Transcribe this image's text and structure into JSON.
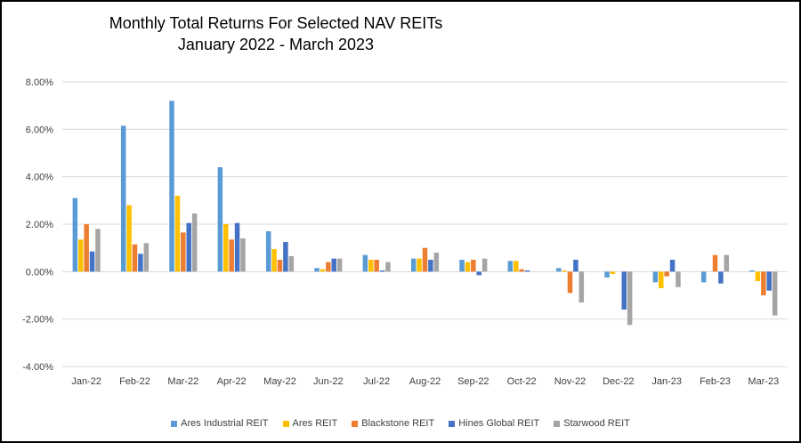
{
  "title_line1": "Monthly Total Returns For Selected NAV REITs",
  "title_line2": "January 2022 - March 2023",
  "chart_data": {
    "type": "bar",
    "title": "Monthly Total Returns For Selected NAV REITs",
    "subtitle": "January 2022 - March 2023",
    "xlabel": "",
    "ylabel": "",
    "ylim": [
      -4,
      8
    ],
    "yticks": [
      -4,
      -2,
      0,
      2,
      4,
      6,
      8
    ],
    "ytick_labels": [
      "-4.00%",
      "-2.00%",
      "0.00%",
      "2.00%",
      "4.00%",
      "6.00%",
      "8.00%"
    ],
    "grid": true,
    "legend_position": "bottom",
    "categories": [
      "Jan-22",
      "Feb-22",
      "Mar-22",
      "Apr-22",
      "May-22",
      "Jun-22",
      "Jul-22",
      "Aug-22",
      "Sep-22",
      "Oct-22",
      "Nov-22",
      "Dec-22",
      "Jan-23",
      "Feb-23",
      "Mar-23"
    ],
    "series": [
      {
        "name": "Ares Industrial REIT",
        "color": "#5B9BD5",
        "values": [
          3.1,
          6.15,
          7.2,
          4.4,
          1.7,
          0.15,
          0.7,
          0.55,
          0.5,
          0.45,
          0.15,
          -0.25,
          -0.45,
          -0.45,
          0.05
        ]
      },
      {
        "name": "Ares REIT",
        "color": "#FFC000",
        "values": [
          1.35,
          2.8,
          3.2,
          2.0,
          0.95,
          0.1,
          0.5,
          0.55,
          0.4,
          0.45,
          0.05,
          -0.1,
          -0.7,
          0.0,
          -0.4
        ]
      },
      {
        "name": "Blackstone REIT",
        "color": "#ED7D31",
        "values": [
          2.0,
          1.15,
          1.65,
          1.35,
          0.5,
          0.4,
          0.5,
          1.0,
          0.5,
          0.1,
          -0.9,
          0.0,
          -0.2,
          0.7,
          -1.0
        ]
      },
      {
        "name": "Hines Global REIT",
        "color": "#4472C4",
        "values": [
          0.85,
          0.75,
          2.05,
          2.05,
          1.25,
          0.55,
          0.05,
          0.5,
          -0.15,
          0.05,
          0.5,
          -1.6,
          0.5,
          -0.5,
          -0.8
        ]
      },
      {
        "name": "Starwood REIT",
        "color": "#A5A5A5",
        "values": [
          1.8,
          1.2,
          2.45,
          1.4,
          0.65,
          0.55,
          0.4,
          0.8,
          0.55,
          0.0,
          -1.3,
          -2.25,
          -0.65,
          0.7,
          -1.85
        ]
      }
    ]
  }
}
